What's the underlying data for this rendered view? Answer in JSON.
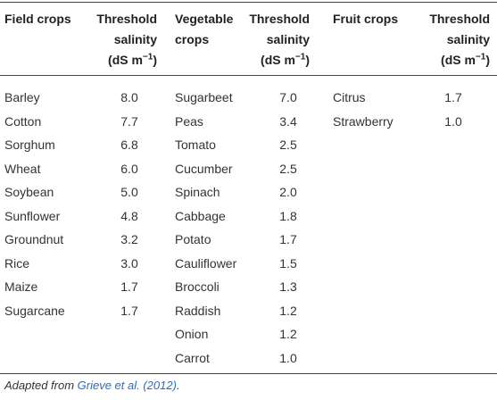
{
  "table": {
    "groups": [
      {
        "crop_header": "Field crops",
        "salinity_header": "Threshold salinity",
        "unit_prefix": "(dS m",
        "unit_exp": "−1",
        "unit_suffix": ")",
        "rows": [
          [
            "Barley",
            "8.0"
          ],
          [
            "Cotton",
            "7.7"
          ],
          [
            "Sorghum",
            "6.8"
          ],
          [
            "Wheat",
            "6.0"
          ],
          [
            "Soybean",
            "5.0"
          ],
          [
            "Sunflower",
            "4.8"
          ],
          [
            "Groundnut",
            "3.2"
          ],
          [
            "Rice",
            "3.0"
          ],
          [
            "Maize",
            "1.7"
          ],
          [
            "Sugarcane",
            "1.7"
          ]
        ]
      },
      {
        "crop_header": "Vegetable crops",
        "salinity_header": "Threshold salinity",
        "unit_prefix": "(dS m",
        "unit_exp": "−1",
        "unit_suffix": ")",
        "rows": [
          [
            "Sugarbeet",
            "7.0"
          ],
          [
            "Peas",
            "3.4"
          ],
          [
            "Tomato",
            "2.5"
          ],
          [
            "Cucumber",
            "2.5"
          ],
          [
            "Spinach",
            "2.0"
          ],
          [
            "Cabbage",
            "1.8"
          ],
          [
            "Potato",
            "1.7"
          ],
          [
            "Cauliflower",
            "1.5"
          ],
          [
            "Broccoli",
            "1.3"
          ],
          [
            "Raddish",
            "1.2"
          ],
          [
            "Onion",
            "1.2"
          ],
          [
            "Carrot",
            "1.0"
          ]
        ]
      },
      {
        "crop_header": "Fruit crops",
        "salinity_header": "Threshold salinity",
        "unit_prefix": "(dS m",
        "unit_exp": "−1",
        "unit_suffix": ")",
        "rows": [
          [
            "Citrus",
            "1.7"
          ],
          [
            "Strawberry",
            "1.0"
          ]
        ]
      }
    ]
  },
  "footnote": {
    "prefix": "Adapted from ",
    "link": "Grieve et al. (2012)",
    "suffix": "."
  }
}
